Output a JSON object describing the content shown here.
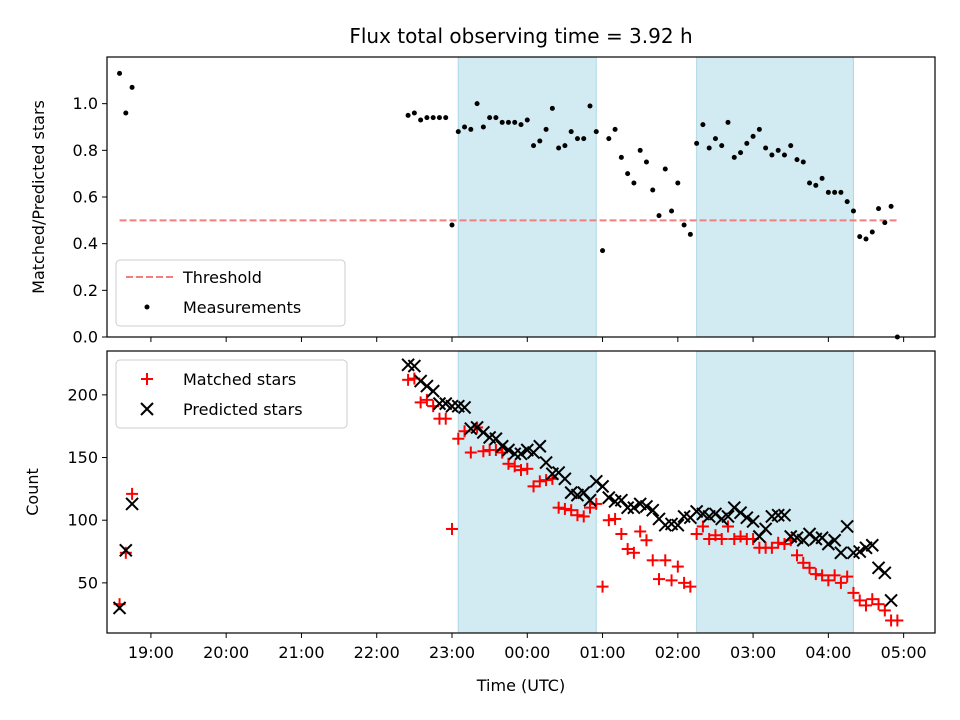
{
  "chart_data": [
    {
      "type": "scatter",
      "title": "Flux total observing time = 3.92 h",
      "ylabel": "Matched/Predicted stars",
      "xlabel": "",
      "ylim": [
        0,
        1.2
      ],
      "yticks": [
        0.0,
        0.2,
        0.4,
        0.6,
        0.8,
        1.0
      ],
      "ytick_labels": [
        "0.0",
        "0.2",
        "0.4",
        "0.6",
        "0.8",
        "1.0"
      ],
      "xlim": [
        "18:25",
        "05:25"
      ],
      "xticks": [
        "19:00",
        "20:00",
        "21:00",
        "22:00",
        "23:00",
        "00:00",
        "01:00",
        "02:00",
        "03:00",
        "04:00",
        "05:00"
      ],
      "shaded_spans": [
        [
          "23:05",
          "00:55"
        ],
        [
          "02:15",
          "04:20"
        ]
      ],
      "shade_color": "#add8e6",
      "legend_position": "lower-left",
      "threshold": {
        "name": "Threshold",
        "value": 0.5,
        "x_range": [
          "18:35",
          "04:55"
        ],
        "color": "#f08080"
      },
      "series": [
        {
          "name": "Measurements",
          "color": "#000000",
          "points": [
            [
              "18:35",
              1.13
            ],
            [
              "18:40",
              0.96
            ],
            [
              "18:45",
              1.07
            ],
            [
              "22:25",
              0.95
            ],
            [
              "22:30",
              0.96
            ],
            [
              "22:35",
              0.93
            ],
            [
              "22:40",
              0.94
            ],
            [
              "22:45",
              0.94
            ],
            [
              "22:50",
              0.94
            ],
            [
              "22:55",
              0.94
            ],
            [
              "23:00",
              0.48
            ],
            [
              "23:05",
              0.88
            ],
            [
              "23:10",
              0.9
            ],
            [
              "23:15",
              0.89
            ],
            [
              "23:20",
              1.0
            ],
            [
              "23:25",
              0.9
            ],
            [
              "23:30",
              0.94
            ],
            [
              "23:35",
              0.94
            ],
            [
              "23:40",
              0.92
            ],
            [
              "23:45",
              0.92
            ],
            [
              "23:50",
              0.92
            ],
            [
              "23:55",
              0.91
            ],
            [
              "00:00",
              0.93
            ],
            [
              "00:05",
              0.82
            ],
            [
              "00:10",
              0.84
            ],
            [
              "00:15",
              0.89
            ],
            [
              "00:20",
              0.98
            ],
            [
              "00:25",
              0.81
            ],
            [
              "00:30",
              0.82
            ],
            [
              "00:35",
              0.88
            ],
            [
              "00:40",
              0.85
            ],
            [
              "00:45",
              0.85
            ],
            [
              "00:50",
              0.99
            ],
            [
              "00:55",
              0.88
            ],
            [
              "01:00",
              0.37
            ],
            [
              "01:05",
              0.85
            ],
            [
              "01:10",
              0.89
            ],
            [
              "01:15",
              0.77
            ],
            [
              "01:20",
              0.7
            ],
            [
              "01:25",
              0.66
            ],
            [
              "01:30",
              0.8
            ],
            [
              "01:35",
              0.75
            ],
            [
              "01:40",
              0.63
            ],
            [
              "01:45",
              0.52
            ],
            [
              "01:50",
              0.72
            ],
            [
              "01:55",
              0.54
            ],
            [
              "02:00",
              0.66
            ],
            [
              "02:05",
              0.48
            ],
            [
              "02:10",
              0.44
            ],
            [
              "02:15",
              0.83
            ],
            [
              "02:20",
              0.91
            ],
            [
              "02:25",
              0.81
            ],
            [
              "02:30",
              0.85
            ],
            [
              "02:35",
              0.82
            ],
            [
              "02:40",
              0.92
            ],
            [
              "02:45",
              0.77
            ],
            [
              "02:50",
              0.79
            ],
            [
              "02:55",
              0.83
            ],
            [
              "03:00",
              0.86
            ],
            [
              "03:05",
              0.89
            ],
            [
              "03:10",
              0.81
            ],
            [
              "03:15",
              0.78
            ],
            [
              "03:20",
              0.8
            ],
            [
              "03:25",
              0.78
            ],
            [
              "03:30",
              0.82
            ],
            [
              "03:35",
              0.76
            ],
            [
              "03:40",
              0.75
            ],
            [
              "03:45",
              0.66
            ],
            [
              "03:50",
              0.65
            ],
            [
              "03:55",
              0.68
            ],
            [
              "04:00",
              0.62
            ],
            [
              "04:05",
              0.62
            ],
            [
              "04:10",
              0.62
            ],
            [
              "04:15",
              0.58
            ],
            [
              "04:20",
              0.54
            ],
            [
              "04:25",
              0.43
            ],
            [
              "04:30",
              0.42
            ],
            [
              "04:35",
              0.45
            ],
            [
              "04:40",
              0.55
            ],
            [
              "04:45",
              0.49
            ],
            [
              "04:50",
              0.56
            ],
            [
              "04:55",
              0.0
            ]
          ]
        }
      ]
    },
    {
      "type": "scatter",
      "title": "",
      "ylabel": "Count",
      "xlabel": "Time (UTC)",
      "ylim": [
        10,
        235
      ],
      "yticks": [
        50,
        100,
        150,
        200
      ],
      "ytick_labels": [
        "50",
        "100",
        "150",
        "200"
      ],
      "xlim": [
        "18:25",
        "05:25"
      ],
      "xticks": [
        "19:00",
        "20:00",
        "21:00",
        "22:00",
        "23:00",
        "00:00",
        "01:00",
        "02:00",
        "03:00",
        "04:00",
        "05:00"
      ],
      "xtick_labels": [
        "19:00",
        "20:00",
        "21:00",
        "22:00",
        "23:00",
        "00:00",
        "01:00",
        "02:00",
        "03:00",
        "04:00",
        "05:00"
      ],
      "shaded_spans": [
        [
          "23:05",
          "00:55"
        ],
        [
          "02:15",
          "04:20"
        ]
      ],
      "shade_color": "#add8e6",
      "legend_position": "upper-left",
      "series": [
        {
          "name": "Matched stars",
          "marker": "plus",
          "color": "#ff0000",
          "points": [
            [
              "18:35",
              33
            ],
            [
              "18:40",
              74
            ],
            [
              "18:45",
              121
            ],
            [
              "22:25",
              212
            ],
            [
              "22:30",
              213
            ],
            [
              "22:35",
              194
            ],
            [
              "22:40",
              196
            ],
            [
              "22:45",
              191
            ],
            [
              "22:50",
              181
            ],
            [
              "22:55",
              181
            ],
            [
              "23:00",
              93
            ],
            [
              "23:05",
              165
            ],
            [
              "23:10",
              171
            ],
            [
              "23:15",
              154
            ],
            [
              "23:20",
              174
            ],
            [
              "23:25",
              155
            ],
            [
              "23:30",
              156
            ],
            [
              "23:35",
              156
            ],
            [
              "23:40",
              154
            ],
            [
              "23:45",
              145
            ],
            [
              "23:50",
              143
            ],
            [
              "23:55",
              140
            ],
            [
              "00:00",
              141
            ],
            [
              "00:05",
              127
            ],
            [
              "00:10",
              131
            ],
            [
              "00:15",
              132
            ],
            [
              "00:20",
              133
            ],
            [
              "00:25",
              110
            ],
            [
              "00:30",
              109
            ],
            [
              "00:35",
              108
            ],
            [
              "00:40",
              104
            ],
            [
              "00:45",
              103
            ],
            [
              "00:50",
              110
            ],
            [
              "00:55",
              113
            ],
            [
              "01:00",
              47
            ],
            [
              "01:05",
              100
            ],
            [
              "01:10",
              101
            ],
            [
              "01:15",
              89
            ],
            [
              "01:20",
              77
            ],
            [
              "01:25",
              74
            ],
            [
              "01:30",
              91
            ],
            [
              "01:35",
              84
            ],
            [
              "01:40",
              68
            ],
            [
              "01:45",
              53
            ],
            [
              "01:50",
              68
            ],
            [
              "01:55",
              52
            ],
            [
              "02:00",
              63
            ],
            [
              "02:05",
              50
            ],
            [
              "02:10",
              47
            ],
            [
              "02:15",
              89
            ],
            [
              "02:20",
              95
            ],
            [
              "02:25",
              85
            ],
            [
              "02:30",
              88
            ],
            [
              "02:35",
              85
            ],
            [
              "02:40",
              95
            ],
            [
              "02:45",
              85
            ],
            [
              "02:50",
              87
            ],
            [
              "02:55",
              85
            ],
            [
              "03:00",
              85
            ],
            [
              "03:05",
              78
            ],
            [
              "03:10",
              78
            ],
            [
              "03:15",
              78
            ],
            [
              "03:20",
              82
            ],
            [
              "03:25",
              81
            ],
            [
              "03:30",
              84
            ],
            [
              "03:35",
              72
            ],
            [
              "03:40",
              66
            ],
            [
              "03:45",
              62
            ],
            [
              "03:50",
              57
            ],
            [
              "03:55",
              56
            ],
            [
              "04:00",
              52
            ],
            [
              "04:05",
              56
            ],
            [
              "04:10",
              50
            ],
            [
              "04:15",
              55
            ],
            [
              "04:20",
              42
            ],
            [
              "04:25",
              36
            ],
            [
              "04:30",
              32
            ],
            [
              "04:35",
              37
            ],
            [
              "04:40",
              33
            ],
            [
              "04:45",
              28
            ],
            [
              "04:50",
              20
            ],
            [
              "04:55",
              20
            ]
          ]
        },
        {
          "name": "Predicted stars",
          "marker": "x",
          "color": "#000000",
          "points": [
            [
              "18:35",
              30
            ],
            [
              "18:40",
              76
            ],
            [
              "18:45",
              113
            ],
            [
              "22:25",
              224
            ],
            [
              "22:30",
              223
            ],
            [
              "22:35",
              211
            ],
            [
              "22:40",
              207
            ],
            [
              "22:45",
              203
            ],
            [
              "22:50",
              193
            ],
            [
              "22:55",
              193
            ],
            [
              "23:00",
              191
            ],
            [
              "23:05",
              191
            ],
            [
              "23:10",
              190
            ],
            [
              "23:15",
              173
            ],
            [
              "23:20",
              174
            ],
            [
              "23:25",
              170
            ],
            [
              "23:30",
              166
            ],
            [
              "23:35",
              165
            ],
            [
              "23:40",
              159
            ],
            [
              "23:45",
              156
            ],
            [
              "23:50",
              153
            ],
            [
              "23:55",
              153
            ],
            [
              "00:00",
              156
            ],
            [
              "00:05",
              154
            ],
            [
              "00:10",
              159
            ],
            [
              "00:15",
              146
            ],
            [
              "00:20",
              137
            ],
            [
              "00:25",
              138
            ],
            [
              "00:30",
              133
            ],
            [
              "00:35",
              122
            ],
            [
              "00:40",
              120
            ],
            [
              "00:45",
              122
            ],
            [
              "00:50",
              116
            ],
            [
              "00:55",
              131
            ],
            [
              "01:00",
              127
            ],
            [
              "01:05",
              118
            ],
            [
              "01:10",
              115
            ],
            [
              "01:15",
              116
            ],
            [
              "01:20",
              110
            ],
            [
              "01:25",
              110
            ],
            [
              "01:30",
              113
            ],
            [
              "01:35",
              111
            ],
            [
              "01:40",
              108
            ],
            [
              "01:45",
              101
            ],
            [
              "01:50",
              96
            ],
            [
              "01:55",
              97
            ],
            [
              "02:00",
              96
            ],
            [
              "02:05",
              103
            ],
            [
              "02:10",
              102
            ],
            [
              "02:15",
              107
            ],
            [
              "02:20",
              105
            ],
            [
              "02:25",
              103
            ],
            [
              "02:30",
              105
            ],
            [
              "02:35",
              101
            ],
            [
              "02:40",
              103
            ],
            [
              "02:45",
              110
            ],
            [
              "02:50",
              106
            ],
            [
              "02:55",
              102
            ],
            [
              "03:00",
              99
            ],
            [
              "03:05",
              87
            ],
            [
              "03:10",
              93
            ],
            [
              "03:15",
              103
            ],
            [
              "03:20",
              104
            ],
            [
              "03:25",
              104
            ],
            [
              "03:30",
              87
            ],
            [
              "03:35",
              86
            ],
            [
              "03:40",
              84
            ],
            [
              "03:45",
              89
            ],
            [
              "03:50",
              85
            ],
            [
              "03:55",
              86
            ],
            [
              "04:00",
              81
            ],
            [
              "04:05",
              84
            ],
            [
              "04:10",
              74
            ],
            [
              "04:15",
              95
            ],
            [
              "04:20",
              74
            ],
            [
              "04:25",
              75
            ],
            [
              "04:30",
              78
            ],
            [
              "04:35",
              80
            ],
            [
              "04:40",
              62
            ],
            [
              "04:45",
              58
            ],
            [
              "04:50",
              36
            ]
          ]
        }
      ]
    }
  ]
}
